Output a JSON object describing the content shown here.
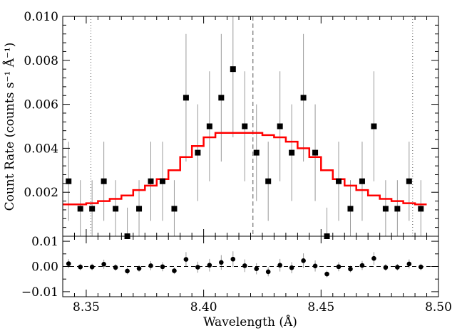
{
  "chart_data": [
    {
      "type": "scatter",
      "panel": "main",
      "xlabel": "Wavelength (Å)",
      "ylabel": "Count Rate (counts s⁻¹ Å⁻¹)",
      "xlim": [
        8.34,
        8.5
      ],
      "ylim": [
        0,
        0.01
      ],
      "x_ticks": [
        "8.35",
        "8.40",
        "8.45",
        "8.50"
      ],
      "y_ticks": [
        "0.002",
        "0.004",
        "0.006",
        "0.008",
        "0.010"
      ],
      "grid": false,
      "colors": {
        "data": "#000000",
        "errorbar": "#999999",
        "model": "#ff0000",
        "marker_lines": "#555555"
      },
      "vertical_lines": [
        {
          "x": 8.352,
          "style": "dotted"
        },
        {
          "x": 8.421,
          "style": "dashed"
        },
        {
          "x": 8.489,
          "style": "dotted"
        }
      ],
      "bin_edges": [
        8.34,
        8.345,
        8.35,
        8.355,
        8.36,
        8.365,
        8.37,
        8.375,
        8.38,
        8.385,
        8.39,
        8.395,
        8.4,
        8.405,
        8.41,
        8.415,
        8.42,
        8.425,
        8.43,
        8.435,
        8.44,
        8.445,
        8.45,
        8.455,
        8.46,
        8.465,
        8.47,
        8.475,
        8.48,
        8.485,
        8.49,
        8.495
      ],
      "series": [
        {
          "kind": "data-with-errorbars",
          "x": [
            8.3425,
            8.3475,
            8.3525,
            8.3575,
            8.3625,
            8.3675,
            8.3725,
            8.3775,
            8.3825,
            8.3875,
            8.3925,
            8.3975,
            8.4025,
            8.4075,
            8.4125,
            8.4175,
            8.4225,
            8.4275,
            8.4325,
            8.4375,
            8.4425,
            8.4475,
            8.4525,
            8.4575,
            8.4625,
            8.4675,
            8.4725,
            8.4775,
            8.4825,
            8.4875,
            8.4925
          ],
          "y": [
            0.0025,
            0.00125,
            0.00125,
            0.0025,
            0.00125,
            0.0,
            0.00125,
            0.0025,
            0.0025,
            0.00125,
            0.0063,
            0.0038,
            0.005,
            0.0063,
            0.0076,
            0.005,
            0.0038,
            0.0025,
            0.005,
            0.0038,
            0.0063,
            0.0038,
            0.0,
            0.0025,
            0.00125,
            0.0025,
            0.005,
            0.00125,
            0.00125,
            0.0025,
            0.00125
          ],
          "yerr": [
            0.0018,
            0.0013,
            0.0013,
            0.0018,
            0.0013,
            0.0013,
            0.0013,
            0.0018,
            0.0018,
            0.0013,
            0.0029,
            0.0022,
            0.0025,
            0.0029,
            0.0031,
            0.0025,
            0.0022,
            0.0018,
            0.0025,
            0.0022,
            0.0029,
            0.0022,
            0.0013,
            0.0018,
            0.0013,
            0.0018,
            0.0025,
            0.0013,
            0.0013,
            0.0018,
            0.0013
          ]
        },
        {
          "kind": "model-step",
          "y": [
            0.00145,
            0.00145,
            0.0015,
            0.0016,
            0.0017,
            0.00185,
            0.0021,
            0.0023,
            0.0026,
            0.003,
            0.0036,
            0.0041,
            0.0045,
            0.0047,
            0.0047,
            0.0047,
            0.0047,
            0.0046,
            0.0045,
            0.0043,
            0.004,
            0.0036,
            0.003,
            0.0026,
            0.0023,
            0.0021,
            0.00185,
            0.0017,
            0.0016,
            0.0015,
            0.00145
          ]
        }
      ]
    },
    {
      "type": "scatter",
      "panel": "residuals",
      "xlabel": "Wavelength (Å)",
      "ylabel": "",
      "xlim": [
        8.34,
        8.5
      ],
      "ylim": [
        -0.012,
        0.012
      ],
      "y_ticks": [
        "0.01",
        "0.00",
        "−0.01"
      ],
      "grid": false,
      "zero_line": "dashed",
      "series": [
        {
          "kind": "residuals-with-errorbars",
          "x": [
            8.3425,
            8.3475,
            8.3525,
            8.3575,
            8.3625,
            8.3675,
            8.3725,
            8.3775,
            8.3825,
            8.3875,
            8.3925,
            8.3975,
            8.4025,
            8.4075,
            8.4125,
            8.4175,
            8.4225,
            8.4275,
            8.4325,
            8.4375,
            8.4425,
            8.4475,
            8.4525,
            8.4575,
            8.4625,
            8.4675,
            8.4725,
            8.4775,
            8.4825,
            8.4875,
            8.4925
          ],
          "y": [
            0.0011,
            -0.0002,
            -0.0002,
            0.0009,
            -0.0004,
            -0.0018,
            -0.0008,
            0.0003,
            -0.0001,
            -0.0017,
            0.0028,
            -0.0003,
            0.0005,
            0.0016,
            0.0029,
            0.0003,
            -0.0009,
            -0.0021,
            0.0005,
            -0.0005,
            0.0023,
            0.0002,
            -0.003,
            -0.0001,
            -0.001,
            0.0004,
            0.0032,
            -0.0004,
            -0.0003,
            0.001,
            -0.0002
          ],
          "yerr": [
            0.0018,
            0.0013,
            0.0013,
            0.0018,
            0.0013,
            0.0013,
            0.0013,
            0.0018,
            0.0018,
            0.0013,
            0.0029,
            0.0022,
            0.0025,
            0.0029,
            0.0031,
            0.0025,
            0.0022,
            0.0018,
            0.0025,
            0.0022,
            0.0029,
            0.0022,
            0.0013,
            0.0018,
            0.0013,
            0.0018,
            0.0025,
            0.0013,
            0.0013,
            0.0018,
            0.0013
          ]
        }
      ]
    }
  ]
}
